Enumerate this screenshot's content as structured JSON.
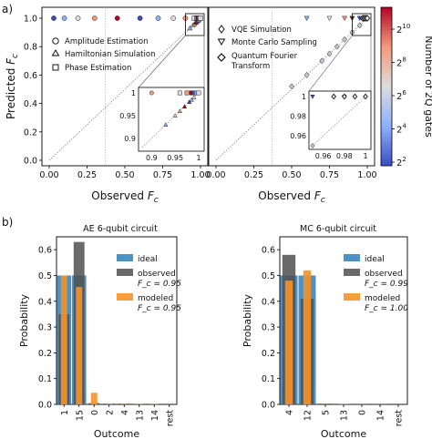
{
  "panel_labels": {
    "a": "a)",
    "b": "b)"
  },
  "colorbar": {
    "label": "Number of 2Q gates",
    "ticks": [
      {
        "base": "2",
        "exp": "10"
      },
      {
        "base": "2",
        "exp": "8"
      },
      {
        "base": "2",
        "exp": "6"
      },
      {
        "base": "2",
        "exp": "4"
      },
      {
        "base": "2",
        "exp": "2"
      }
    ],
    "colors": [
      "#3a4cc0",
      "#8db0fe",
      "#dddddd",
      "#f49a7b",
      "#b40426"
    ]
  },
  "chart_data": [
    {
      "type": "scatter",
      "xlabel": "Observed F_c",
      "ylabel": "Predicted F_c",
      "xlim": [
        0,
        1
      ],
      "ylim": [
        0,
        1
      ],
      "xticks": [
        "0.00",
        "0.25",
        "0.50",
        "0.75",
        "1.00"
      ],
      "yticks": [
        "0.0",
        "0.2",
        "0.4",
        "0.6",
        "0.8",
        "1.0"
      ],
      "legend": [
        "Amplitude Estimation",
        "Hamiltonian Simulation",
        "Phase Estimation"
      ],
      "inset": {
        "xticks": [
          "0.9",
          "0.95",
          "1"
        ],
        "yticks": [
          "0.9",
          "0.95",
          "1"
        ]
      },
      "series": [
        {
          "name": "Amplitude Estimation",
          "marker": "circle",
          "x": [
            0.03,
            0.1,
            0.19,
            0.3,
            0.45,
            0.6,
            0.72,
            0.82,
            0.9
          ],
          "y": [
            1.0,
            1.0,
            1.0,
            1.0,
            1.0,
            1.0,
            1.0,
            1.0,
            1.0
          ]
        },
        {
          "name": "Hamiltonian Simulation",
          "marker": "triangle",
          "x": [
            0.93,
            0.95,
            0.96,
            0.97,
            0.98,
            0.985,
            0.99
          ],
          "y": [
            0.93,
            0.95,
            0.96,
            0.97,
            0.98,
            0.985,
            0.99
          ]
        },
        {
          "name": "Phase Estimation",
          "marker": "square",
          "x": [
            0.96,
            0.975,
            0.985,
            0.99,
            0.995,
            1.0
          ],
          "y": [
            1.0,
            1.0,
            1.0,
            1.0,
            1.0,
            1.0
          ]
        }
      ]
    },
    {
      "type": "scatter",
      "xlabel": "Observed F_c",
      "ylabel": "",
      "xlim": [
        0,
        1
      ],
      "ylim": [
        0,
        1
      ],
      "xticks": [
        "0.00",
        "0.25",
        "0.50",
        "0.75",
        "1.00"
      ],
      "legend": [
        "VQE Simulation",
        "Monte Carlo Sampling",
        "Quantum Fourier Transform"
      ],
      "inset": {
        "xticks": [
          "0.96",
          "0.98",
          "1"
        ],
        "yticks": [
          "0.96",
          "0.98",
          "1"
        ]
      },
      "series": [
        {
          "name": "VQE Simulation",
          "marker": "diamond",
          "x": [
            0.5,
            0.6,
            0.7,
            0.75,
            0.8,
            0.85,
            0.9,
            0.95
          ],
          "y": [
            0.52,
            0.6,
            0.7,
            0.75,
            0.8,
            0.85,
            0.9,
            0.95
          ]
        },
        {
          "name": "Monte Carlo Sampling",
          "marker": "triangle-down",
          "x": [
            0.6,
            0.75,
            0.85,
            0.9,
            0.95,
            0.98
          ],
          "y": [
            1.0,
            1.0,
            1.0,
            1.0,
            1.0,
            1.0
          ]
        },
        {
          "name": "Quantum Fourier Transform",
          "marker": "diamond-open",
          "x": [
            0.97,
            0.98,
            0.99,
            1.0
          ],
          "y": [
            1.0,
            1.0,
            1.0,
            1.0
          ]
        }
      ]
    },
    {
      "type": "bar",
      "title": "AE 6-qubit circuit",
      "xlabel": "Outcome",
      "ylabel": "Probability",
      "ylim": [
        0,
        0.65
      ],
      "yticks": [
        "0.0",
        "0.1",
        "0.2",
        "0.3",
        "0.4",
        "0.5",
        "0.6"
      ],
      "categories": [
        "1",
        "15",
        "0",
        "2",
        "4",
        "13",
        "14",
        "rest"
      ],
      "series": [
        {
          "name": "ideal",
          "values": [
            0.5,
            0.5,
            0,
            0,
            0,
            0,
            0,
            0
          ]
        },
        {
          "name": "observed",
          "values": [
            0.35,
            0.63,
            0.005,
            0.003,
            0.003,
            0.002,
            0.002,
            0
          ]
        },
        {
          "name": "modeled",
          "values": [
            0.5,
            0.455,
            0.045,
            0.003,
            0.002,
            0.001,
            0.001,
            0
          ]
        }
      ],
      "legend": {
        "ideal": "ideal",
        "observed": "observed",
        "observed_fc": "F_c = 0.95",
        "modeled": "modeled",
        "modeled_fc": "F_c = 0.95"
      }
    },
    {
      "type": "bar",
      "title": "MC 6-qubit circuit",
      "xlabel": "Outcome",
      "ylabel": "Probability",
      "ylim": [
        0,
        0.65
      ],
      "yticks": [
        "0.0",
        "0.1",
        "0.2",
        "0.3",
        "0.4",
        "0.5",
        "0.6"
      ],
      "categories": [
        "4",
        "12",
        "5",
        "13",
        "0",
        "14",
        "rest"
      ],
      "series": [
        {
          "name": "ideal",
          "values": [
            0.5,
            0.5,
            0,
            0,
            0,
            0,
            0
          ]
        },
        {
          "name": "observed",
          "values": [
            0.58,
            0.41,
            0.003,
            0.002,
            0.002,
            0.001,
            0
          ]
        },
        {
          "name": "modeled",
          "values": [
            0.48,
            0.52,
            0.001,
            0.001,
            0,
            0,
            0
          ]
        }
      ],
      "legend": {
        "ideal": "ideal",
        "observed": "observed",
        "observed_fc": "F_c = 0.99",
        "modeled": "modeled",
        "modeled_fc": "F_c = 1.00"
      }
    }
  ]
}
